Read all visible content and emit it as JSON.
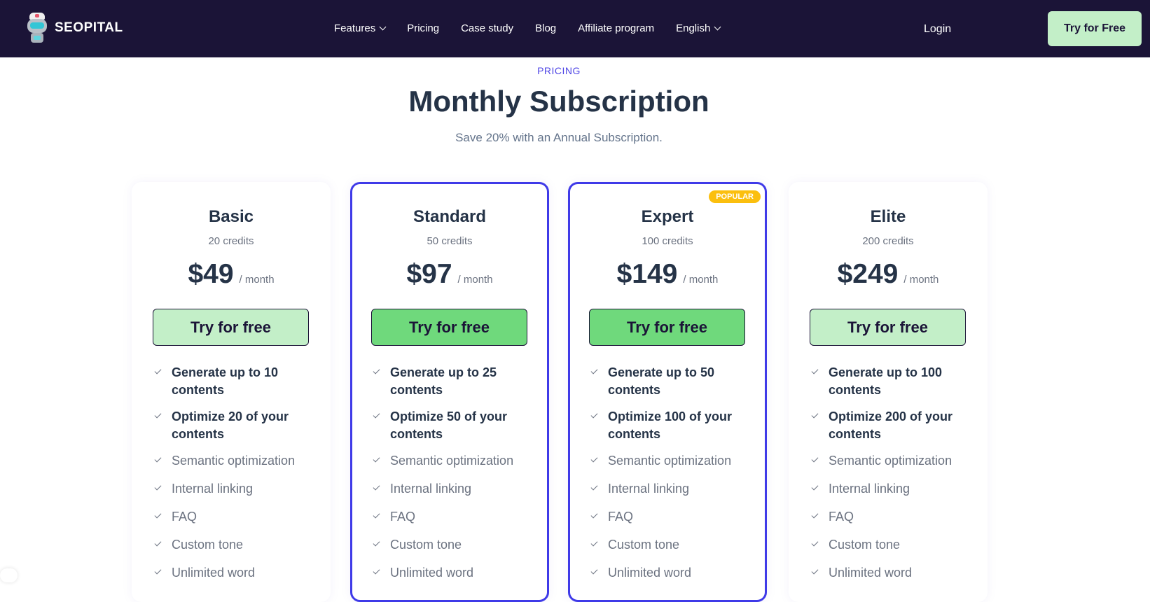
{
  "nav": {
    "brand": "SEOPITAL",
    "menu": [
      {
        "label": "Features",
        "dropdown": true
      },
      {
        "label": "Pricing"
      },
      {
        "label": "Case study"
      },
      {
        "label": "Blog"
      },
      {
        "label": "Affiliate program"
      },
      {
        "label": "English",
        "dropdown": true
      }
    ],
    "login": "Login",
    "cta": "Try for Free"
  },
  "header": {
    "eyebrow": "PRICING",
    "title": "Monthly Subscription",
    "subtitle": "Save 20% with an Annual Subscription."
  },
  "colors": {
    "nav_bg": "#1b1437",
    "accent": "#3f3ae8",
    "cta_light": "#c3efc8",
    "cta_dark": "#6fd97c",
    "badge": "#fbbf0e"
  },
  "plans": [
    {
      "name": "Basic",
      "credits": "20 credits",
      "price": "$49",
      "period": "/ month",
      "cta": "Try for free",
      "highlight": false,
      "features": [
        "Generate up to 10 contents",
        "Optimize 20 of your contents",
        "Semantic optimization",
        "Internal linking",
        "FAQ",
        "Custom tone",
        "Unlimited word"
      ]
    },
    {
      "name": "Standard",
      "credits": "50 credits",
      "price": "$97",
      "period": "/ month",
      "cta": "Try for free",
      "highlight": true,
      "features": [
        "Generate up to 25 contents",
        "Optimize 50 of your contents",
        "Semantic optimization",
        "Internal linking",
        "FAQ",
        "Custom tone",
        "Unlimited word"
      ]
    },
    {
      "name": "Expert",
      "credits": "100 credits",
      "price": "$149",
      "period": "/ month",
      "cta": "Try for free",
      "highlight": true,
      "badge": "POPULAR",
      "features": [
        "Generate up to 50 contents",
        "Optimize 100 of your contents",
        "Semantic optimization",
        "Internal linking",
        "FAQ",
        "Custom tone",
        "Unlimited word"
      ]
    },
    {
      "name": "Elite",
      "credits": "200 credits",
      "price": "$249",
      "period": "/ month",
      "cta": "Try for free",
      "highlight": false,
      "features": [
        "Generate up to 100 contents",
        "Optimize 200 of your contents",
        "Semantic optimization",
        "Internal linking",
        "FAQ",
        "Custom tone",
        "Unlimited word"
      ]
    }
  ]
}
